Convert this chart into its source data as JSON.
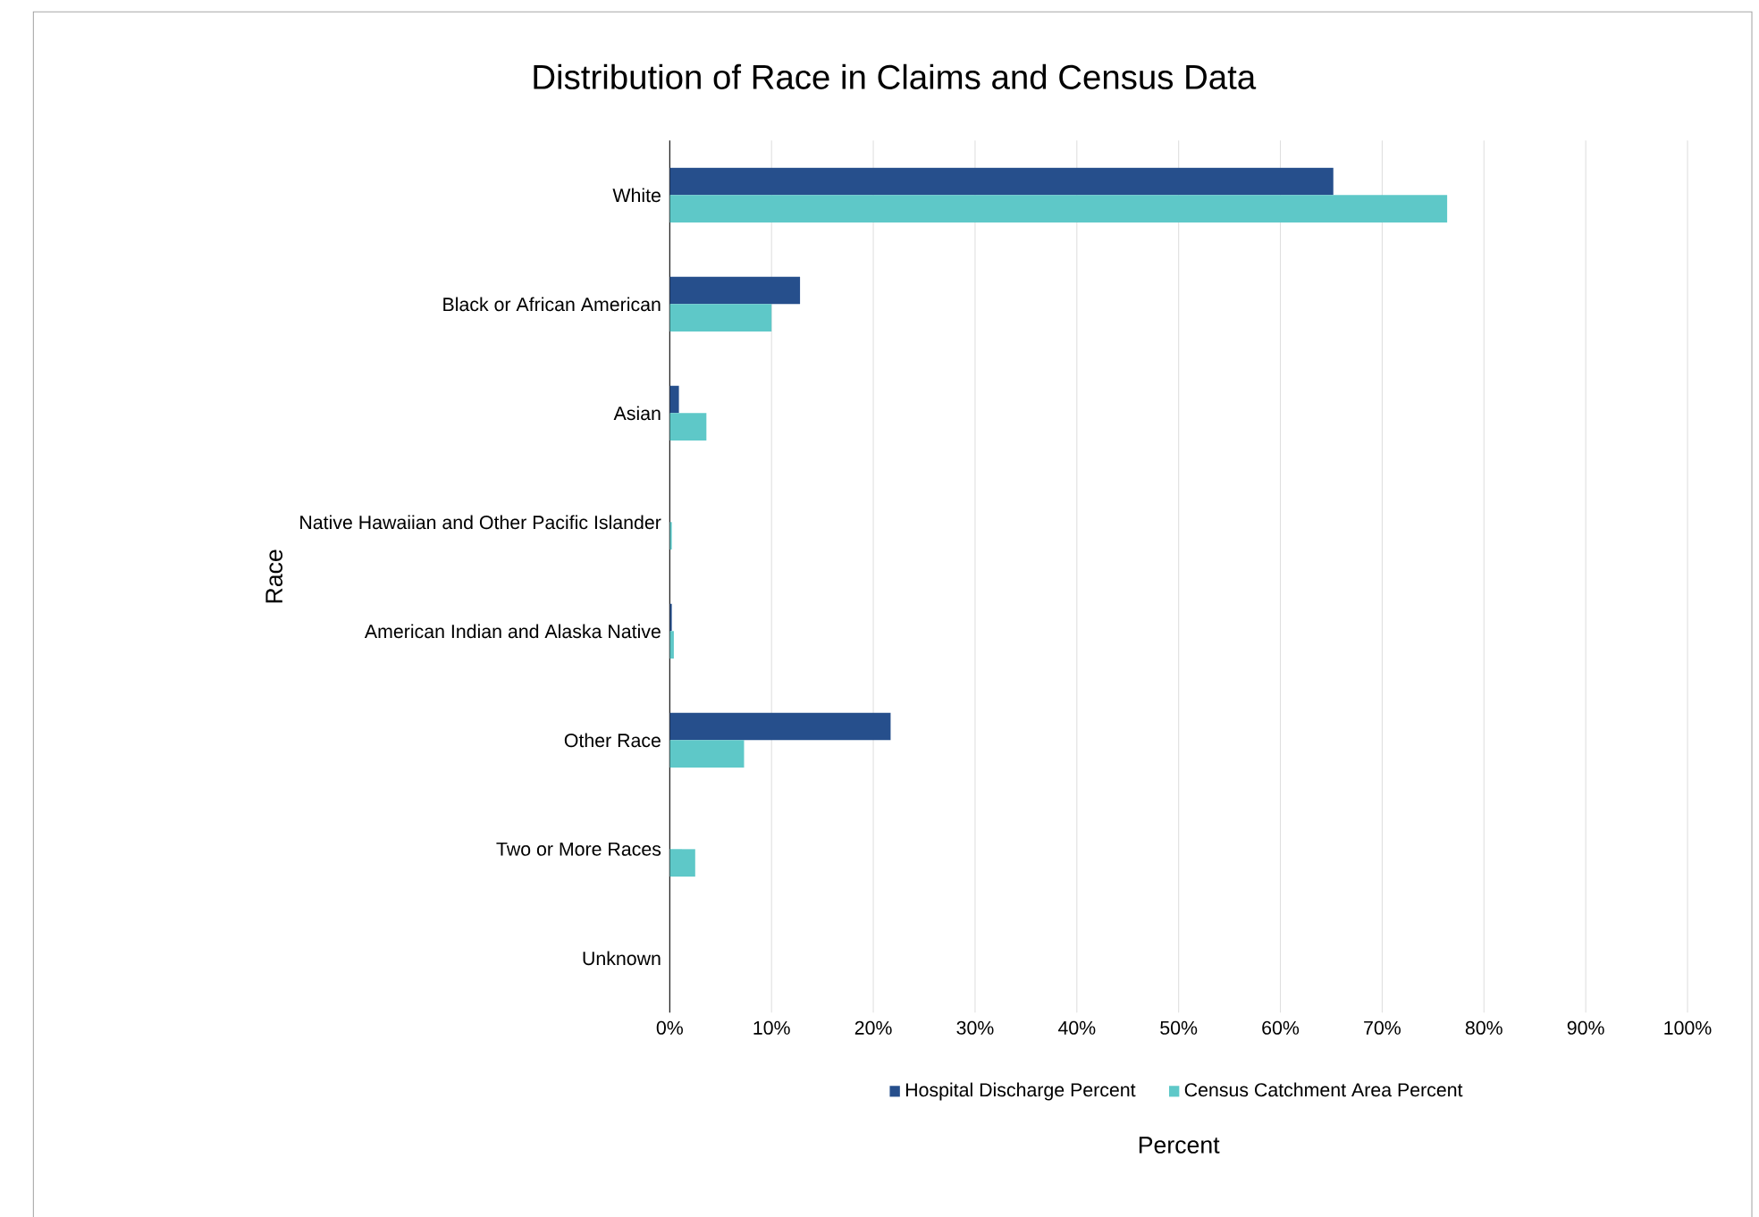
{
  "chart_data": {
    "type": "bar",
    "orientation": "horizontal",
    "title": "Distribution of Race in Claims and Census Data",
    "xlabel": "Percent",
    "ylabel": "Race",
    "categories": [
      "White",
      "Black or African American",
      "Asian",
      "Native Hawaiian and Other Pacific Islander",
      "American Indian and Alaska Native",
      "Other Race",
      "Two or More Races",
      "Unknown"
    ],
    "series": [
      {
        "name": "Hospital Discharge Percent",
        "color": "#264f8c",
        "values": [
          65.2,
          12.8,
          0.9,
          0,
          0.2,
          21.7,
          0,
          0
        ]
      },
      {
        "name": "Census Catchment Area Percent",
        "color": "#5ec8c8",
        "values": [
          76.4,
          10.0,
          3.6,
          0.2,
          0.4,
          7.3,
          2.5,
          0
        ]
      }
    ],
    "xlim": [
      0,
      100
    ],
    "xticks": [
      {
        "value": 0,
        "label": "0%"
      },
      {
        "value": 10,
        "label": "10%"
      },
      {
        "value": 20,
        "label": "20%"
      },
      {
        "value": 30,
        "label": "30%"
      },
      {
        "value": 40,
        "label": "40%"
      },
      {
        "value": 50,
        "label": "50%"
      },
      {
        "value": 60,
        "label": "60%"
      },
      {
        "value": 70,
        "label": "70%"
      },
      {
        "value": 80,
        "label": "80%"
      },
      {
        "value": 90,
        "label": "90%"
      },
      {
        "value": 100,
        "label": "100%"
      }
    ],
    "grid": "x",
    "legend": "bottom"
  }
}
